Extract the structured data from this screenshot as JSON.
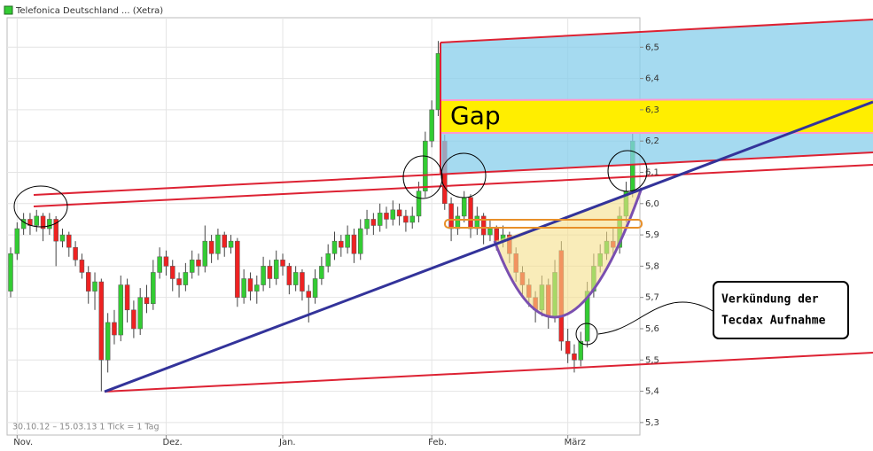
{
  "chart_data": {
    "type": "candlestick",
    "title": "Telefonica Deutschland ... (Xetra)",
    "footer": "30.10.12 – 15.03.13   1 Tick = 1 Tag",
    "up_color": "#33cc33",
    "down_color": "#ee2222",
    "ylim": [
      5.26,
      6.6
    ],
    "yticks": [
      {
        "value": 5.3,
        "label": "5,3"
      },
      {
        "value": 5.4,
        "label": "5,4"
      },
      {
        "value": 5.5,
        "label": "5,5"
      },
      {
        "value": 5.6,
        "label": "5,6"
      },
      {
        "value": 5.7,
        "label": "5,7"
      },
      {
        "value": 5.8,
        "label": "5,8"
      },
      {
        "value": 5.9,
        "label": "5,9"
      },
      {
        "value": 6.0,
        "label": "6,0"
      },
      {
        "value": 6.1,
        "label": "6,1"
      },
      {
        "value": 6.2,
        "label": "6,2"
      },
      {
        "value": 6.3,
        "label": "6,3"
      },
      {
        "value": 6.4,
        "label": "6,4"
      },
      {
        "value": 6.5,
        "label": "6,5"
      }
    ],
    "xticks": [
      {
        "value": 1,
        "label": "Nov."
      },
      {
        "value": 24,
        "label": "Dez."
      },
      {
        "value": 42,
        "label": "Jan."
      },
      {
        "value": 65,
        "label": "Feb."
      },
      {
        "value": 86,
        "label": "März"
      }
    ],
    "grid": true,
    "annotations": {
      "gap": "Gap",
      "callout": [
        "Verkündung der",
        "Tecdax Aufnahme"
      ]
    },
    "ohlc": [
      [
        5.72,
        5.86,
        5.7,
        5.84
      ],
      [
        5.84,
        5.94,
        5.82,
        5.92
      ],
      [
        5.92,
        5.97,
        5.9,
        5.95
      ],
      [
        5.95,
        5.97,
        5.9,
        5.93
      ],
      [
        5.93,
        5.98,
        5.91,
        5.96
      ],
      [
        5.96,
        5.97,
        5.88,
        5.92
      ],
      [
        5.92,
        5.97,
        5.9,
        5.95
      ],
      [
        5.95,
        5.96,
        5.8,
        5.88
      ],
      [
        5.88,
        5.92,
        5.86,
        5.9
      ],
      [
        5.9,
        5.91,
        5.83,
        5.86
      ],
      [
        5.86,
        5.88,
        5.8,
        5.82
      ],
      [
        5.82,
        5.84,
        5.76,
        5.78
      ],
      [
        5.78,
        5.8,
        5.68,
        5.72
      ],
      [
        5.72,
        5.78,
        5.66,
        5.75
      ],
      [
        5.75,
        5.76,
        5.4,
        5.5
      ],
      [
        5.5,
        5.65,
        5.46,
        5.62
      ],
      [
        5.62,
        5.66,
        5.55,
        5.58
      ],
      [
        5.58,
        5.77,
        5.56,
        5.74
      ],
      [
        5.74,
        5.76,
        5.62,
        5.66
      ],
      [
        5.66,
        5.69,
        5.57,
        5.6
      ],
      [
        5.6,
        5.73,
        5.58,
        5.7
      ],
      [
        5.7,
        5.74,
        5.65,
        5.68
      ],
      [
        5.68,
        5.82,
        5.66,
        5.78
      ],
      [
        5.78,
        5.86,
        5.76,
        5.83
      ],
      [
        5.83,
        5.85,
        5.77,
        5.8
      ],
      [
        5.8,
        5.82,
        5.72,
        5.76
      ],
      [
        5.76,
        5.78,
        5.7,
        5.74
      ],
      [
        5.74,
        5.81,
        5.72,
        5.78
      ],
      [
        5.78,
        5.85,
        5.76,
        5.82
      ],
      [
        5.82,
        5.84,
        5.77,
        5.8
      ],
      [
        5.8,
        5.93,
        5.78,
        5.88
      ],
      [
        5.88,
        5.9,
        5.81,
        5.84
      ],
      [
        5.84,
        5.92,
        5.82,
        5.9
      ],
      [
        5.9,
        5.91,
        5.83,
        5.86
      ],
      [
        5.86,
        5.9,
        5.84,
        5.88
      ],
      [
        5.88,
        5.89,
        5.67,
        5.7
      ],
      [
        5.7,
        5.79,
        5.68,
        5.76
      ],
      [
        5.76,
        5.78,
        5.69,
        5.72
      ],
      [
        5.72,
        5.77,
        5.68,
        5.74
      ],
      [
        5.74,
        5.83,
        5.72,
        5.8
      ],
      [
        5.8,
        5.82,
        5.73,
        5.76
      ],
      [
        5.76,
        5.85,
        5.74,
        5.82
      ],
      [
        5.82,
        5.84,
        5.77,
        5.8
      ],
      [
        5.8,
        5.81,
        5.71,
        5.74
      ],
      [
        5.74,
        5.8,
        5.72,
        5.78
      ],
      [
        5.78,
        5.79,
        5.69,
        5.72
      ],
      [
        5.72,
        5.74,
        5.62,
        5.7
      ],
      [
        5.7,
        5.79,
        5.68,
        5.76
      ],
      [
        5.76,
        5.83,
        5.74,
        5.8
      ],
      [
        5.8,
        5.87,
        5.78,
        5.84
      ],
      [
        5.84,
        5.91,
        5.82,
        5.88
      ],
      [
        5.88,
        5.9,
        5.83,
        5.86
      ],
      [
        5.86,
        5.93,
        5.84,
        5.9
      ],
      [
        5.9,
        5.92,
        5.81,
        5.84
      ],
      [
        5.84,
        5.95,
        5.82,
        5.92
      ],
      [
        5.92,
        5.98,
        5.9,
        5.95
      ],
      [
        5.95,
        5.97,
        5.9,
        5.93
      ],
      [
        5.93,
        6.0,
        5.91,
        5.97
      ],
      [
        5.97,
        5.99,
        5.92,
        5.95
      ],
      [
        5.95,
        6.01,
        5.93,
        5.98
      ],
      [
        5.98,
        6.0,
        5.93,
        5.96
      ],
      [
        5.96,
        5.98,
        5.91,
        5.94
      ],
      [
        5.94,
        5.99,
        5.92,
        5.96
      ],
      [
        5.96,
        6.07,
        5.94,
        6.04
      ],
      [
        6.04,
        6.23,
        6.02,
        6.2
      ],
      [
        6.2,
        6.33,
        6.18,
        6.3
      ],
      [
        6.3,
        6.52,
        6.28,
        6.48
      ],
      [
        6.2,
        6.22,
        5.98,
        6.0
      ],
      [
        6.0,
        6.02,
        5.88,
        5.92
      ],
      [
        5.92,
        5.99,
        5.9,
        5.96
      ],
      [
        5.96,
        6.04,
        5.94,
        6.02
      ],
      [
        6.02,
        6.03,
        5.89,
        5.92
      ],
      [
        5.92,
        5.99,
        5.9,
        5.96
      ],
      [
        5.96,
        5.97,
        5.87,
        5.9
      ],
      [
        5.9,
        5.95,
        5.88,
        5.92
      ],
      [
        5.92,
        5.93,
        5.85,
        5.88
      ],
      [
        5.88,
        5.93,
        5.86,
        5.9
      ],
      [
        5.9,
        5.91,
        5.81,
        5.84
      ],
      [
        5.84,
        5.86,
        5.75,
        5.78
      ],
      [
        5.78,
        5.8,
        5.71,
        5.74
      ],
      [
        5.74,
        5.76,
        5.67,
        5.7
      ],
      [
        5.7,
        5.72,
        5.62,
        5.66
      ],
      [
        5.66,
        5.77,
        5.64,
        5.74
      ],
      [
        5.74,
        5.76,
        5.6,
        5.64
      ],
      [
        5.64,
        5.82,
        5.62,
        5.78
      ],
      [
        5.85,
        5.88,
        5.53,
        5.56
      ],
      [
        5.56,
        5.6,
        5.49,
        5.52
      ],
      [
        5.52,
        5.55,
        5.46,
        5.5
      ],
      [
        5.5,
        5.59,
        5.48,
        5.56
      ],
      [
        5.56,
        5.75,
        5.54,
        5.72
      ],
      [
        5.72,
        5.84,
        5.7,
        5.8
      ],
      [
        5.8,
        5.87,
        5.78,
        5.84
      ],
      [
        5.84,
        5.91,
        5.82,
        5.88
      ],
      [
        5.88,
        5.92,
        5.83,
        5.86
      ],
      [
        5.86,
        5.99,
        5.84,
        5.96
      ],
      [
        5.96,
        6.07,
        5.94,
        6.04
      ],
      [
        6.04,
        6.27,
        6.02,
        6.2
      ]
    ]
  }
}
